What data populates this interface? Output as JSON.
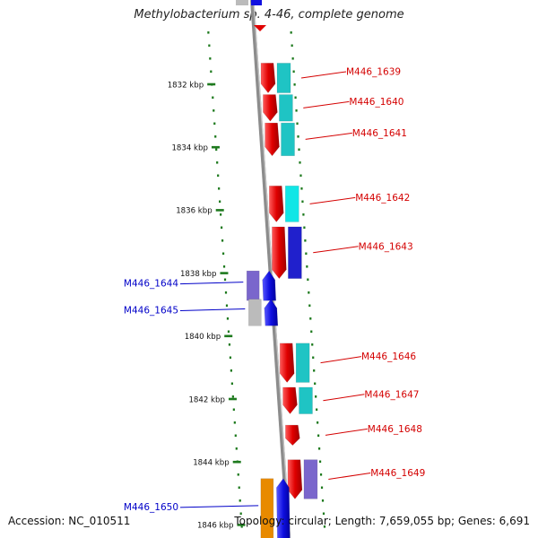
{
  "title": "Methylobacterium sp. 4-46, complete genome",
  "footer": {
    "accession": "Accession: NC_010511",
    "summary": "Topology: circular; Length: 7,659,055 bp; Genes: 6,691"
  },
  "colors": {
    "forward_label": "#d40000",
    "reverse_label": "#0000c8",
    "tick": "#1e7a1e",
    "backbone": "#8c8c8c"
  },
  "scale_ticks": [
    {
      "label": "1832 kbp",
      "kbp": 1832
    },
    {
      "label": "1834 kbp",
      "kbp": 1834
    },
    {
      "label": "1836 kbp",
      "kbp": 1836
    },
    {
      "label": "1838 kbp",
      "kbp": 1838
    },
    {
      "label": "1840 kbp",
      "kbp": 1840
    },
    {
      "label": "1842 kbp",
      "kbp": 1842
    },
    {
      "label": "1844 kbp",
      "kbp": 1844
    },
    {
      "label": "1846 kbp",
      "kbp": 1846
    }
  ],
  "genes_forward": [
    {
      "label": "M446_1639",
      "color": "#e00000",
      "cog": "#1fc4c4",
      "start": 1831.3,
      "end": 1832.3
    },
    {
      "label": "M446_1640",
      "color": "#e00000",
      "cog": "#1fc4c4",
      "start": 1832.3,
      "end": 1833.2
    },
    {
      "label": "M446_1641",
      "color": "#e00000",
      "cog": "#1fc4c4",
      "start": 1833.2,
      "end": 1834.3
    },
    {
      "label": "M446_1642",
      "color": "#e00000",
      "cog": "#11e6e6",
      "start": 1835.2,
      "end": 1836.4
    },
    {
      "label": "M446_1643",
      "color": "#e00000",
      "cog": "#2020cc",
      "start": 1836.5,
      "end": 1838.2
    },
    {
      "label": "M446_1646",
      "color": "#e00000",
      "cog": "#1fc4c4",
      "start": 1840.2,
      "end": 1841.5
    },
    {
      "label": "M446_1647",
      "color": "#e00000",
      "cog": "#1fc4c4",
      "start": 1841.6,
      "end": 1842.5
    },
    {
      "label": "M446_1648",
      "color": "#e00000",
      "cog": "",
      "start": 1842.8,
      "end": 1843.5
    },
    {
      "label": "M446_1649",
      "color": "#e00000",
      "cog": "#7a66cc",
      "start": 1843.9,
      "end": 1845.2
    }
  ],
  "genes_reverse": [
    {
      "label": "M446_1644",
      "color": "#1010e0",
      "cog": "#7a66cc",
      "start": 1837.9,
      "end": 1838.9
    },
    {
      "label": "M446_1645",
      "color": "#1010e0",
      "cog": "#bbbbbb",
      "start": 1838.8,
      "end": 1839.7
    },
    {
      "label": "M446_1650",
      "color": "#1010e0",
      "cog": "#e88a00",
      "start": 1844.5,
      "end": 1846.5
    }
  ]
}
